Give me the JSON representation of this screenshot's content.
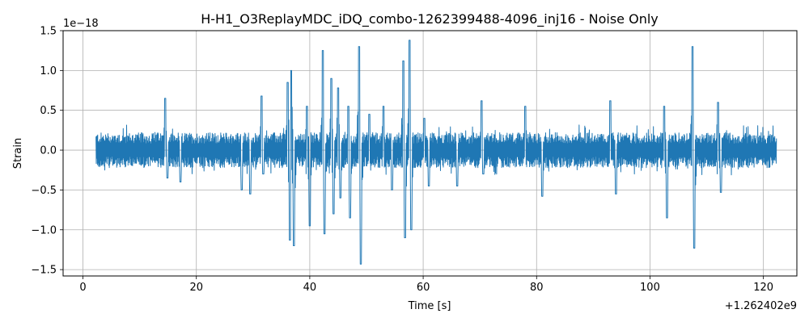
{
  "chart_data": {
    "type": "line",
    "title": "H-H1_O3ReplayMDC_iDQ_combo-1262399488-4096_inj16 - Noise Only",
    "xlabel": "Time [s]",
    "ylabel": "Strain",
    "x_offset_label": "+1.262402e9",
    "y_exponent_label": "1e−18",
    "xlim": [
      -3.5,
      125.9
    ],
    "ylim": [
      -1.58,
      1.5
    ],
    "x_ticks": [
      0,
      20,
      40,
      60,
      80,
      100,
      120
    ],
    "x_tick_labels": [
      "0",
      "20",
      "40",
      "60",
      "80",
      "100",
      "120"
    ],
    "y_ticks": [
      -1.5,
      -1.0,
      -0.5,
      0.0,
      0.5,
      1.0,
      1.5
    ],
    "y_tick_labels": [
      "−1.5",
      "−1.0",
      "−0.5",
      "0.0",
      "0.5",
      "1.0",
      "1.5"
    ],
    "grid": true,
    "line_color": "#1f77b4",
    "series": [
      {
        "x_range": [
          2.3,
          122.3
        ],
        "baseline_amplitude": 0.22,
        "peaks": [
          {
            "x": 14.5,
            "y": 0.65
          },
          {
            "x": 14.9,
            "y": -0.35
          },
          {
            "x": 17.2,
            "y": -0.4
          },
          {
            "x": 28.0,
            "y": -0.5
          },
          {
            "x": 29.5,
            "y": -0.55
          },
          {
            "x": 31.5,
            "y": 0.68
          },
          {
            "x": 31.8,
            "y": -0.3
          },
          {
            "x": 36.1,
            "y": 0.85
          },
          {
            "x": 36.7,
            "y": 1.0
          },
          {
            "x": 36.5,
            "y": -1.13
          },
          {
            "x": 37.2,
            "y": -1.2
          },
          {
            "x": 39.5,
            "y": 0.55
          },
          {
            "x": 40.0,
            "y": -0.95
          },
          {
            "x": 42.3,
            "y": 1.25
          },
          {
            "x": 42.6,
            "y": -1.05
          },
          {
            "x": 43.8,
            "y": 0.9
          },
          {
            "x": 44.2,
            "y": -0.8
          },
          {
            "x": 45.0,
            "y": 0.78
          },
          {
            "x": 45.4,
            "y": -0.6
          },
          {
            "x": 46.8,
            "y": 0.55
          },
          {
            "x": 47.1,
            "y": -0.85
          },
          {
            "x": 48.7,
            "y": 1.3
          },
          {
            "x": 49.0,
            "y": -1.43
          },
          {
            "x": 50.5,
            "y": 0.45
          },
          {
            "x": 53.0,
            "y": 0.55
          },
          {
            "x": 54.5,
            "y": -0.5
          },
          {
            "x": 56.5,
            "y": 1.12
          },
          {
            "x": 56.8,
            "y": -1.1
          },
          {
            "x": 57.6,
            "y": 1.38
          },
          {
            "x": 57.9,
            "y": -1.0
          },
          {
            "x": 60.2,
            "y": 0.4
          },
          {
            "x": 61.0,
            "y": -0.45
          },
          {
            "x": 66.0,
            "y": -0.45
          },
          {
            "x": 70.3,
            "y": 0.62
          },
          {
            "x": 70.6,
            "y": -0.3
          },
          {
            "x": 78.0,
            "y": 0.55
          },
          {
            "x": 81.0,
            "y": -0.58
          },
          {
            "x": 93.0,
            "y": 0.62
          },
          {
            "x": 94.0,
            "y": -0.55
          },
          {
            "x": 102.5,
            "y": 0.55
          },
          {
            "x": 103.0,
            "y": -0.85
          },
          {
            "x": 107.5,
            "y": 1.3
          },
          {
            "x": 107.8,
            "y": -1.23
          },
          {
            "x": 112.0,
            "y": 0.6
          },
          {
            "x": 112.5,
            "y": -0.53
          }
        ]
      }
    ]
  }
}
